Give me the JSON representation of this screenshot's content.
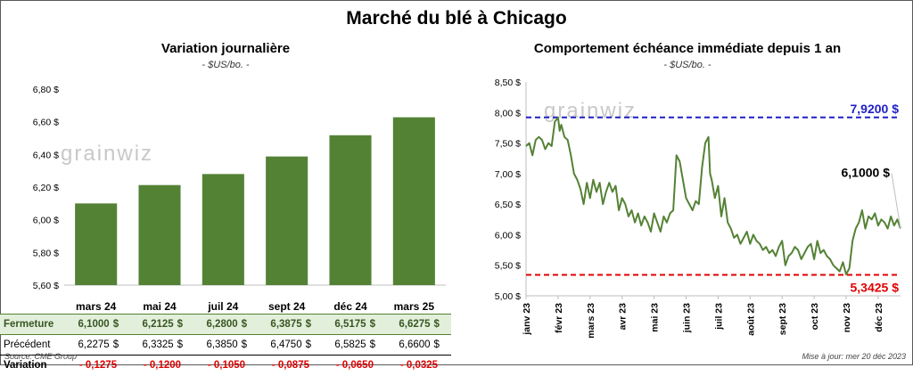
{
  "main_title": "Marché du blé à Chicago",
  "left": {
    "title": "Variation journalière",
    "subtitle": "- $US/bo. -",
    "watermark": "grainwiz"
  },
  "right": {
    "title": "Comportement échéance immédiate depuis 1 an",
    "subtitle": "- $US/bo. -",
    "watermark": "grainwiz"
  },
  "chart_data": [
    {
      "type": "bar",
      "title": "Variation journalière",
      "subtitle": "- $US/bo. -",
      "categories": [
        "mars 24",
        "mai 24",
        "juil 24",
        "sept 24",
        "déc 24",
        "mars 25"
      ],
      "values": [
        6.1,
        6.2125,
        6.28,
        6.3875,
        6.5175,
        6.6275
      ],
      "ylim": [
        5.6,
        6.8
      ],
      "yticks": [
        5.6,
        5.8,
        6.0,
        6.2,
        6.4,
        6.6,
        6.8
      ],
      "ytick_labels": [
        "5,60 $",
        "5,80 $",
        "6,00 $",
        "6,20 $",
        "6,40 $",
        "6,60 $",
        "6,80 $"
      ],
      "color": "#548235"
    },
    {
      "type": "line",
      "title": "Comportement échéance immédiate depuis 1 an",
      "subtitle": "- $US/bo. -",
      "ylim": [
        5.0,
        8.5
      ],
      "yticks": [
        5.0,
        5.5,
        6.0,
        6.5,
        7.0,
        7.5,
        8.0,
        8.5
      ],
      "ytick_labels": [
        "5,00 $",
        "5,50 $",
        "6,00 $",
        "6,50 $",
        "7,00 $",
        "7,50 $",
        "8,00 $",
        "8,50 $"
      ],
      "x_range_months": [
        0,
        11.7
      ],
      "x_months": [
        "janv 23",
        "févr 23",
        "mars 23",
        "avr 23",
        "mai 23",
        "juin 23",
        "juil 23",
        "août 23",
        "sept 23",
        "oct 23",
        "nov 23",
        "déc 23"
      ],
      "series": [
        {
          "name": "Échéance immédiate",
          "color": "#548235",
          "x": [
            0,
            0.1,
            0.2,
            0.3,
            0.4,
            0.5,
            0.6,
            0.7,
            0.8,
            0.9,
            1.0,
            1.05,
            1.1,
            1.2,
            1.3,
            1.4,
            1.5,
            1.6,
            1.7,
            1.8,
            1.9,
            2.0,
            2.1,
            2.2,
            2.3,
            2.4,
            2.5,
            2.6,
            2.7,
            2.8,
            2.9,
            3.0,
            3.1,
            3.2,
            3.3,
            3.4,
            3.5,
            3.6,
            3.7,
            3.8,
            3.9,
            4.0,
            4.1,
            4.2,
            4.3,
            4.4,
            4.5,
            4.6,
            4.7,
            4.8,
            4.9,
            5.0,
            5.1,
            5.2,
            5.3,
            5.4,
            5.5,
            5.6,
            5.7,
            5.75,
            5.8,
            5.9,
            6.0,
            6.1,
            6.2,
            6.3,
            6.4,
            6.5,
            6.6,
            6.7,
            6.8,
            6.9,
            7.0,
            7.1,
            7.2,
            7.3,
            7.4,
            7.5,
            7.6,
            7.7,
            7.8,
            7.9,
            8.0,
            8.1,
            8.2,
            8.3,
            8.4,
            8.5,
            8.6,
            8.7,
            8.8,
            8.9,
            9.0,
            9.1,
            9.2,
            9.3,
            9.4,
            9.5,
            9.6,
            9.7,
            9.8,
            9.9,
            10.0,
            10.1,
            10.2,
            10.3,
            10.4,
            10.5,
            10.6,
            10.7,
            10.8,
            10.9,
            11.0,
            11.1,
            11.2,
            11.3,
            11.4,
            11.5,
            11.6,
            11.7
          ],
          "values": [
            7.45,
            7.5,
            7.3,
            7.55,
            7.6,
            7.55,
            7.4,
            7.5,
            7.45,
            7.85,
            7.92,
            7.7,
            7.8,
            7.6,
            7.55,
            7.3,
            7.0,
            6.9,
            6.75,
            6.5,
            6.85,
            6.6,
            6.9,
            6.7,
            6.85,
            6.5,
            6.7,
            6.85,
            6.7,
            6.8,
            6.4,
            6.6,
            6.5,
            6.3,
            6.4,
            6.2,
            6.35,
            6.15,
            6.3,
            6.2,
            6.05,
            6.35,
            6.2,
            6.05,
            6.3,
            6.2,
            6.35,
            6.4,
            7.3,
            7.2,
            6.9,
            6.6,
            6.5,
            6.4,
            6.55,
            6.5,
            7.1,
            7.5,
            7.6,
            7.0,
            6.9,
            6.6,
            6.8,
            6.3,
            6.6,
            6.2,
            6.1,
            5.95,
            6.0,
            5.85,
            5.95,
            6.05,
            5.85,
            6.0,
            5.9,
            5.85,
            5.75,
            5.8,
            5.7,
            5.75,
            5.65,
            5.8,
            5.9,
            5.5,
            5.65,
            5.7,
            5.8,
            5.75,
            5.6,
            5.7,
            5.8,
            5.85,
            5.6,
            5.9,
            5.7,
            5.75,
            5.65,
            5.6,
            5.5,
            5.45,
            5.4,
            5.55,
            5.35,
            5.45,
            5.9,
            6.1,
            6.2,
            6.4,
            6.1,
            6.3,
            6.25,
            6.35,
            6.15,
            6.25,
            6.2,
            6.1,
            6.3,
            6.15,
            6.25,
            6.1
          ]
        }
      ],
      "annotations": {
        "high_label": "7,9200 $",
        "high_value": 7.92,
        "high_color": "#1f1fc8",
        "low_label": "5,3425 $",
        "low_value": 5.3425,
        "low_color": "#e00000",
        "last_label": "6,1000 $",
        "last_value": 6.1
      }
    }
  ],
  "table": {
    "rows": [
      {
        "label": "Fermeture",
        "values": [
          "6,1000",
          "6,2125",
          "6,2800",
          "6,3875",
          "6,5175",
          "6,6275"
        ],
        "currency": "$"
      },
      {
        "label": "Précédent",
        "values": [
          "6,2275",
          "6,3325",
          "6,3850",
          "6,4750",
          "6,5825",
          "6,6600"
        ],
        "currency": "$"
      },
      {
        "label": "Variation",
        "values": [
          "- 0,1275",
          "- 0,1200",
          "- 0,1050",
          "- 0,0875",
          "- 0,0650",
          "- 0,0325"
        ]
      }
    ]
  },
  "footer": {
    "source": "Source: CME Group",
    "updated": "Mise à jour: mer 20 déc 2023"
  }
}
